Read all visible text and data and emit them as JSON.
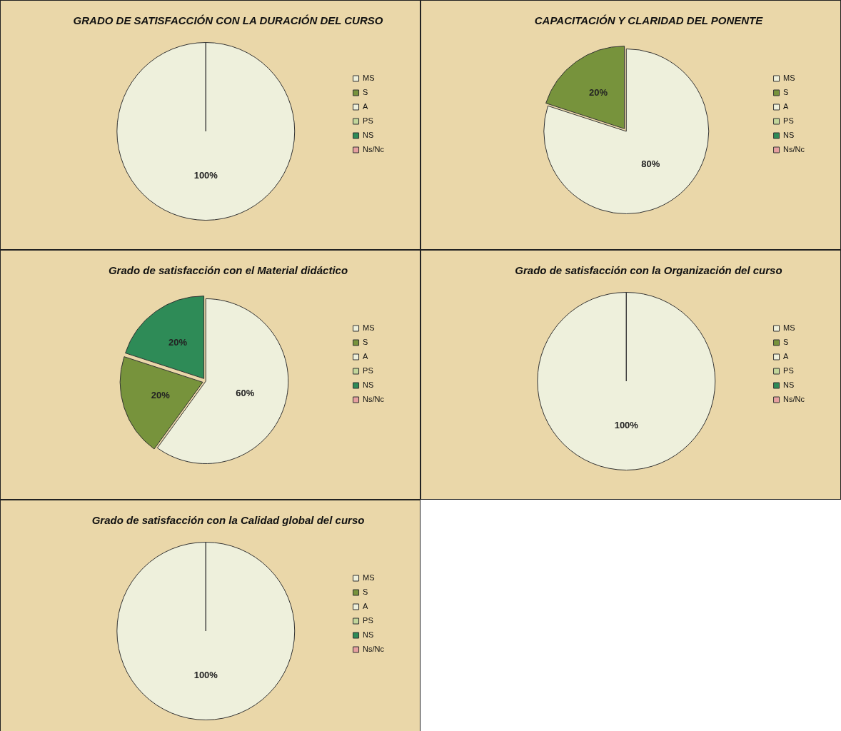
{
  "chart_data": [
    {
      "type": "pie",
      "title": "GRADO DE SATISFACCIÓN CON LA DURACIÓN DEL CURSO",
      "categories": [
        "MS",
        "S",
        "A",
        "PS",
        "NS",
        "Ns/Nc"
      ],
      "values": [
        100,
        0,
        0,
        0,
        0,
        0
      ],
      "value_labels": [
        "100%",
        null,
        null,
        null,
        null,
        null
      ],
      "colors": [
        "#eef0dc",
        "#77933c",
        "#eef0dc",
        "#c3d69b",
        "#2e8b57",
        "#e6a0a0"
      ],
      "legend": "right"
    },
    {
      "type": "pie",
      "title": "CAPACITACIÓN Y CLARIDAD DEL PONENTE",
      "categories": [
        "MS",
        "S",
        "A",
        "PS",
        "NS",
        "Ns/Nc"
      ],
      "values": [
        80,
        20,
        0,
        0,
        0,
        0
      ],
      "value_labels": [
        "80%",
        "20%",
        null,
        null,
        null,
        null
      ],
      "colors": [
        "#eef0dc",
        "#77933c",
        "#eef0dc",
        "#c3d69b",
        "#2e8b57",
        "#e6a0a0"
      ],
      "legend": "right"
    },
    {
      "type": "pie",
      "title": "Grado de satisfacción con el Material didáctico",
      "categories": [
        "MS",
        "S",
        "A",
        "PS",
        "NS",
        "Ns/Nc"
      ],
      "values": [
        60,
        20,
        0,
        0,
        20,
        0
      ],
      "value_labels": [
        "60%",
        "20%",
        null,
        null,
        "20%",
        null
      ],
      "colors": [
        "#eef0dc",
        "#77933c",
        "#eef0dc",
        "#c3d69b",
        "#2e8b57",
        "#e6a0a0"
      ],
      "legend": "right"
    },
    {
      "type": "pie",
      "title": "Grado de satisfacción con la Organización del curso",
      "categories": [
        "MS",
        "S",
        "A",
        "PS",
        "NS",
        "Ns/Nc"
      ],
      "values": [
        100,
        0,
        0,
        0,
        0,
        0
      ],
      "value_labels": [
        "100%",
        null,
        null,
        null,
        null,
        null
      ],
      "colors": [
        "#eef0dc",
        "#77933c",
        "#eef0dc",
        "#c3d69b",
        "#2e8b57",
        "#e6a0a0"
      ],
      "legend": "right"
    },
    {
      "type": "pie",
      "title": "Grado de satisfacción con la Calidad global del curso",
      "categories": [
        "MS",
        "S",
        "A",
        "PS",
        "NS",
        "Ns/Nc"
      ],
      "values": [
        100,
        0,
        0,
        0,
        0,
        0
      ],
      "value_labels": [
        "100%",
        null,
        null,
        null,
        null,
        null
      ],
      "colors": [
        "#eef0dc",
        "#77933c",
        "#eef0dc",
        "#c3d69b",
        "#2e8b57",
        "#e6a0a0"
      ],
      "legend": "right"
    }
  ]
}
